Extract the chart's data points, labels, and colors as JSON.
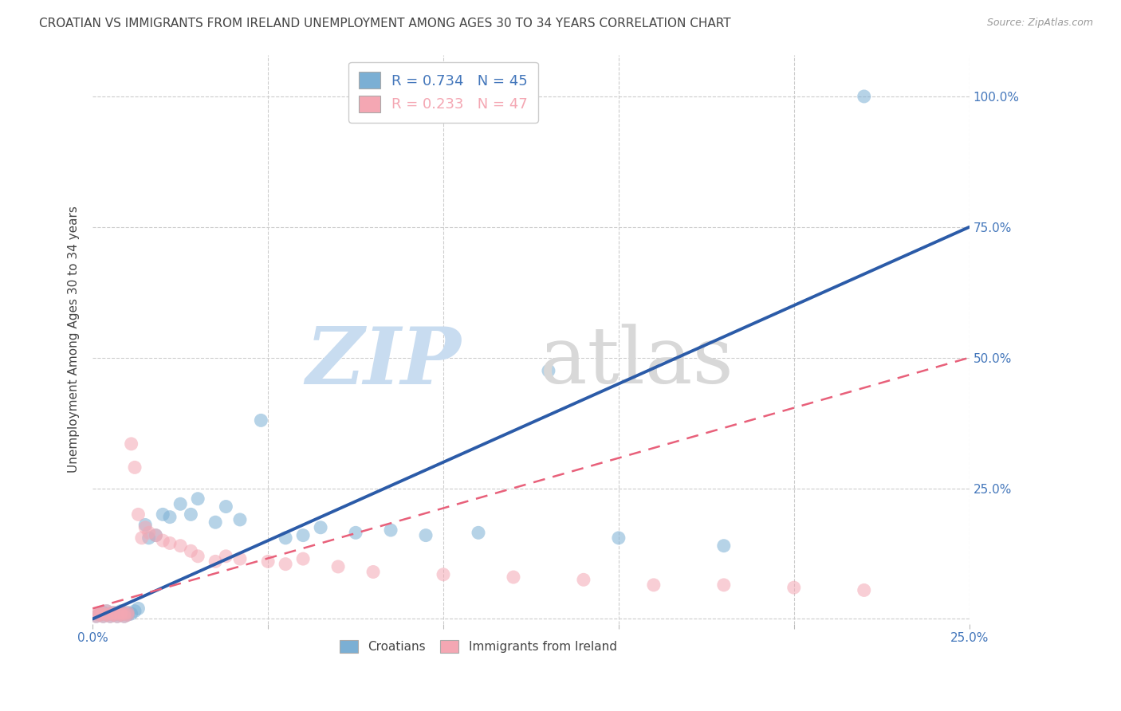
{
  "title": "CROATIAN VS IMMIGRANTS FROM IRELAND UNEMPLOYMENT AMONG AGES 30 TO 34 YEARS CORRELATION CHART",
  "source": "Source: ZipAtlas.com",
  "ylabel": "Unemployment Among Ages 30 to 34 years",
  "xlim": [
    0,
    0.25
  ],
  "ylim": [
    -0.01,
    1.08
  ],
  "xticks": [
    0.0,
    0.05,
    0.1,
    0.15,
    0.2,
    0.25
  ],
  "yticks": [
    0.0,
    0.25,
    0.5,
    0.75,
    1.0
  ],
  "ytick_labels": [
    "",
    "25.0%",
    "50.0%",
    "75.0%",
    "100.0%"
  ],
  "xtick_labels": [
    "0.0%",
    "",
    "",
    "",
    "",
    "25.0%"
  ],
  "blue_label": "R = 0.734   N = 45",
  "pink_label": "R = 0.233   N = 47",
  "legend_label1": "Croatians",
  "legend_label2": "Immigrants from Ireland",
  "blue_color": "#7BAFD4",
  "pink_color": "#F4A7B3",
  "blue_line_color": "#2B5BA8",
  "pink_line_color": "#E8607A",
  "text_color": "#4477BB",
  "title_color": "#444444",
  "blue_scatter_x": [
    0.001,
    0.002,
    0.002,
    0.003,
    0.003,
    0.004,
    0.004,
    0.005,
    0.005,
    0.006,
    0.006,
    0.007,
    0.007,
    0.008,
    0.008,
    0.009,
    0.009,
    0.01,
    0.01,
    0.011,
    0.012,
    0.013,
    0.015,
    0.016,
    0.018,
    0.02,
    0.022,
    0.025,
    0.028,
    0.03,
    0.035,
    0.038,
    0.042,
    0.048,
    0.055,
    0.06,
    0.065,
    0.075,
    0.085,
    0.095,
    0.11,
    0.13,
    0.15,
    0.18,
    0.22
  ],
  "blue_scatter_y": [
    0.005,
    0.008,
    0.01,
    0.005,
    0.012,
    0.008,
    0.015,
    0.005,
    0.01,
    0.008,
    0.012,
    0.005,
    0.01,
    0.008,
    0.015,
    0.005,
    0.01,
    0.008,
    0.012,
    0.01,
    0.015,
    0.02,
    0.18,
    0.155,
    0.16,
    0.2,
    0.195,
    0.22,
    0.2,
    0.23,
    0.185,
    0.215,
    0.19,
    0.38,
    0.155,
    0.16,
    0.175,
    0.165,
    0.17,
    0.16,
    0.165,
    0.475,
    0.155,
    0.14,
    1.0
  ],
  "pink_scatter_x": [
    0.001,
    0.001,
    0.002,
    0.002,
    0.003,
    0.003,
    0.004,
    0.004,
    0.005,
    0.005,
    0.006,
    0.006,
    0.007,
    0.007,
    0.008,
    0.008,
    0.009,
    0.009,
    0.01,
    0.01,
    0.011,
    0.012,
    0.013,
    0.014,
    0.015,
    0.016,
    0.018,
    0.02,
    0.022,
    0.025,
    0.028,
    0.03,
    0.035,
    0.038,
    0.042,
    0.05,
    0.055,
    0.06,
    0.07,
    0.08,
    0.1,
    0.12,
    0.14,
    0.16,
    0.18,
    0.2,
    0.22
  ],
  "pink_scatter_y": [
    0.005,
    0.01,
    0.008,
    0.012,
    0.005,
    0.01,
    0.008,
    0.015,
    0.005,
    0.01,
    0.008,
    0.012,
    0.005,
    0.01,
    0.008,
    0.012,
    0.005,
    0.01,
    0.008,
    0.012,
    0.335,
    0.29,
    0.2,
    0.155,
    0.175,
    0.165,
    0.16,
    0.15,
    0.145,
    0.14,
    0.13,
    0.12,
    0.11,
    0.12,
    0.115,
    0.11,
    0.105,
    0.115,
    0.1,
    0.09,
    0.085,
    0.08,
    0.075,
    0.065,
    0.065,
    0.06,
    0.055
  ],
  "blue_trend_x": [
    0.0,
    0.25
  ],
  "blue_trend_y": [
    0.0,
    0.75
  ],
  "pink_trend_x": [
    0.0,
    0.25
  ],
  "pink_trend_y": [
    0.02,
    0.5
  ],
  "background_color": "#FFFFFF",
  "grid_color": "#CCCCCC"
}
